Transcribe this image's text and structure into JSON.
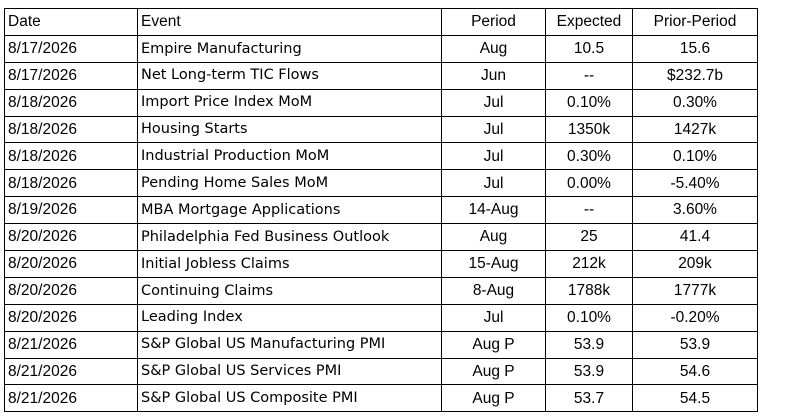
{
  "table": {
    "headers": {
      "date": "Date",
      "event": "Event",
      "period": "Period",
      "expected": "Expected",
      "prior": "Prior-Period"
    },
    "rows": [
      {
        "date": "8/17/2026",
        "event": "Empire Manufacturing",
        "period": "Aug",
        "expected": "10.5",
        "prior": "15.6"
      },
      {
        "date": "8/17/2026",
        "event": "Net Long-term TIC Flows",
        "period": "Jun",
        "expected": "--",
        "prior": "$232.7b"
      },
      {
        "date": "8/18/2026",
        "event": "Import Price Index MoM",
        "period": "Jul",
        "expected": "0.10%",
        "prior": "0.30%"
      },
      {
        "date": "8/18/2026",
        "event": "Housing Starts",
        "period": "Jul",
        "expected": "1350k",
        "prior": "1427k"
      },
      {
        "date": "8/18/2026",
        "event": "Industrial Production MoM",
        "period": "Jul",
        "expected": "0.30%",
        "prior": "0.10%"
      },
      {
        "date": "8/18/2026",
        "event": "Pending Home Sales MoM",
        "period": "Jul",
        "expected": "0.00%",
        "prior": "-5.40%"
      },
      {
        "date": "8/19/2026",
        "event": "MBA Mortgage Applications",
        "period": "14-Aug",
        "expected": "--",
        "prior": "3.60%"
      },
      {
        "date": "8/20/2026",
        "event": "Philadelphia Fed Business Outlook",
        "period": "Aug",
        "expected": "25",
        "prior": "41.4"
      },
      {
        "date": "8/20/2026",
        "event": "Initial Jobless Claims",
        "period": "15-Aug",
        "expected": "212k",
        "prior": "209k"
      },
      {
        "date": "8/20/2026",
        "event": "Continuing Claims",
        "period": "8-Aug",
        "expected": "1788k",
        "prior": "1777k"
      },
      {
        "date": "8/20/2026",
        "event": "Leading Index",
        "period": "Jul",
        "expected": "0.10%",
        "prior": "-0.20%"
      },
      {
        "date": "8/21/2026",
        "event": "S&P Global US Manufacturing PMI",
        "period": "Aug P",
        "expected": "53.9",
        "prior": "53.9"
      },
      {
        "date": "8/21/2026",
        "event": "S&P Global US Services PMI",
        "period": "Aug P",
        "expected": "53.9",
        "prior": "54.6"
      },
      {
        "date": "8/21/2026",
        "event": "S&P Global US Composite PMI",
        "period": "Aug P",
        "expected": "53.7",
        "prior": "54.5"
      }
    ]
  }
}
